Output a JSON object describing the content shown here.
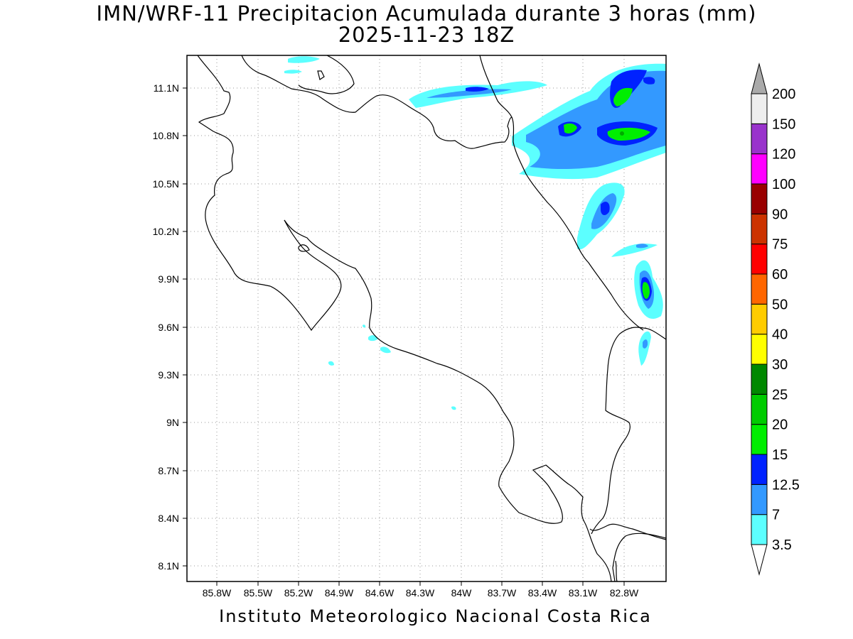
{
  "title": {
    "line1": "IMN/WRF-11 Precipitacion Acumulada durante 3 horas (mm)",
    "line2": "2025-11-23 18Z"
  },
  "footer": "Instituto Meteorologico Nacional Costa Rica",
  "axes": {
    "lon_ticks": [
      "85.8W",
      "85.5W",
      "85.2W",
      "84.9W",
      "84.6W",
      "84.3W",
      "84W",
      "83.7W",
      "83.4W",
      "83.1W",
      "82.8W"
    ],
    "lat_ticks": [
      "11.1N",
      "10.8N",
      "10.5N",
      "10.2N",
      "9.9N",
      "9.6N",
      "9.3N",
      "9N",
      "8.7N",
      "8.4N",
      "8.1N"
    ],
    "lon_range": [
      -86.0,
      -82.5
    ],
    "lat_range": [
      8.0,
      11.3
    ],
    "grid": "dotted"
  },
  "colorbar": {
    "labels": [
      "3.5",
      "7",
      "12.5",
      "15",
      "20",
      "25",
      "30",
      "40",
      "50",
      "60",
      "75",
      "90",
      "100",
      "120",
      "150",
      "200"
    ],
    "colors": [
      "#5cffff",
      "#3399ff",
      "#0022ff",
      "#00ee00",
      "#00cc00",
      "#008800",
      "#ffff00",
      "#ffcc00",
      "#ff6600",
      "#ff0000",
      "#cc3300",
      "#990000",
      "#ff00ff",
      "#9933cc",
      "#eeeeee",
      "#aaaaaa"
    ]
  }
}
